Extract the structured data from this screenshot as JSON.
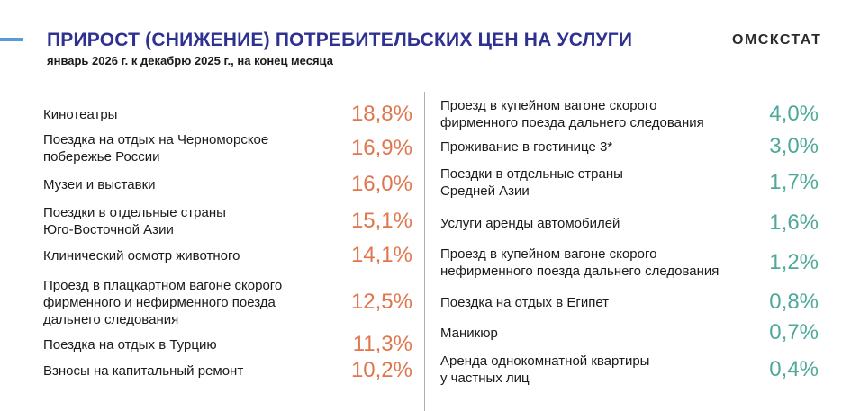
{
  "header": {
    "title": "ПРИРОСТ (СНИЖЕНИЕ) ПОТРЕБИТЕЛЬСКИХ ЦЕН НА УСЛУГИ",
    "subtitle": "январь 2026 г. к декабрю 2025 г., на конец месяца",
    "logo": "ОМСКСТАТ"
  },
  "colors": {
    "title": "#2e3192",
    "accent_bar": "#5b9bd5",
    "value_left": "#e0764e",
    "value_right": "#4fa99a"
  },
  "left_items": [
    {
      "label": "Кинотеатры",
      "value": "18,8%"
    },
    {
      "label": "Поездка на отдых на Черноморское\nпобережье России",
      "value": "16,9%"
    },
    {
      "label": "Музеи и выставки",
      "value": "16,0%"
    },
    {
      "label": "Поездки в отдельные страны\nЮго-Восточной Азии",
      "value": "15,1%"
    },
    {
      "label": "Клинический осмотр животного",
      "value": "14,1%"
    },
    {
      "label": "Проезд в плацкартном вагоне скорого\nфирменного и нефирменного поезда\nдальнего следования",
      "value": "12,5%"
    },
    {
      "label": "Поездка на отдых в Турцию",
      "value": "11,3%"
    },
    {
      "label": "Взносы на капитальный ремонт",
      "value": "10,2%"
    }
  ],
  "right_items": [
    {
      "label": "Проезд в купейном вагоне скорого\nфирменного поезда дальнего следования",
      "value": "4,0%"
    },
    {
      "label": "Проживание в гостинице 3*",
      "value": "3,0%"
    },
    {
      "label": "Поездки в отдельные страны\nСредней Азии",
      "value": "1,7%"
    },
    {
      "label": "Услуги аренды автомобилей",
      "value": "1,6%"
    },
    {
      "label": "Проезд в купейном вагоне скорого\nнефирменного поезда дальнего следования",
      "value": "1,2%"
    },
    {
      "label": "Поездка на отдых в Египет",
      "value": "0,8%"
    },
    {
      "label": "Маникюр",
      "value": "0,7%"
    },
    {
      "label": "Аренда однокомнатной квартиры\nу частных лиц",
      "value": "0,4%"
    }
  ]
}
